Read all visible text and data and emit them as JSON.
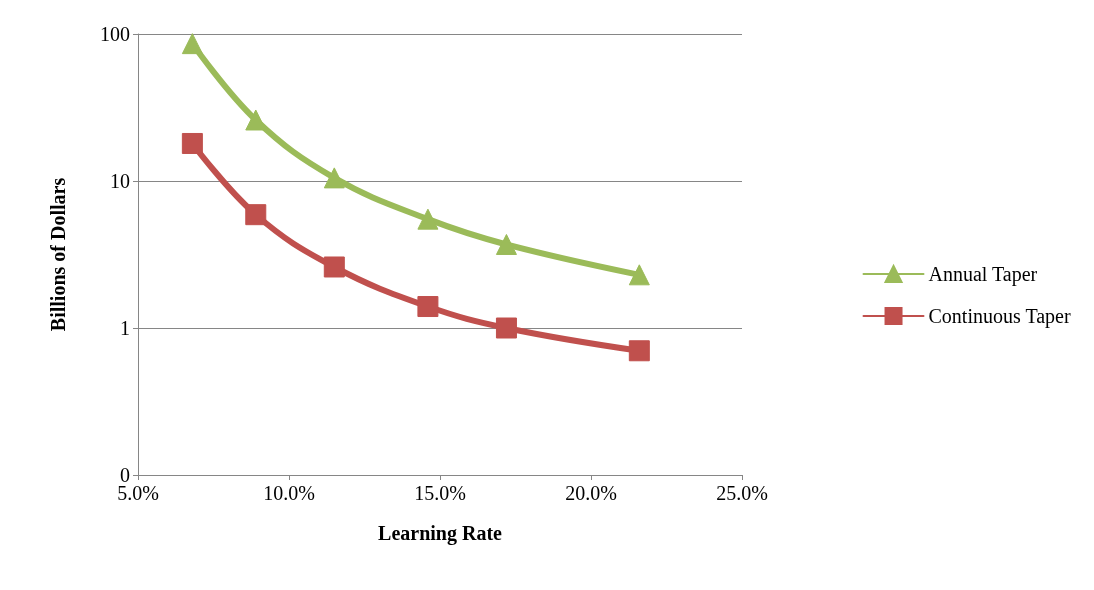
{
  "chart_data": {
    "type": "line",
    "xlabel": "Learning Rate",
    "ylabel": "Billions of Dollars",
    "log": "y",
    "grid": "y",
    "legend": "right",
    "line_style": "solid",
    "xlim": [
      5,
      25
    ],
    "xticks": [
      {
        "value": 5,
        "label": "5.0%"
      },
      {
        "value": 10,
        "label": "10.0%"
      },
      {
        "value": 15,
        "label": "15.0%"
      },
      {
        "value": 20,
        "label": "20.0%"
      },
      {
        "value": 25,
        "label": "25.0%"
      }
    ],
    "ylim": [
      0.1,
      100
    ],
    "yticks": [
      {
        "value": 0.1,
        "label": "0"
      },
      1,
      10,
      100
    ],
    "x": [
      6.8,
      8.9,
      11.5,
      14.6,
      17.2,
      21.6
    ],
    "series": [
      {
        "name": "Annual Taper",
        "color": "#9bbb59",
        "marker": "triangle",
        "values": [
          86,
          26,
          10.5,
          5.5,
          3.7,
          2.3
        ]
      },
      {
        "name": "Continuous Taper",
        "color": "#c0504d",
        "marker": "square",
        "values": [
          18,
          5.9,
          2.6,
          1.4,
          1.0,
          0.7
        ]
      }
    ]
  }
}
